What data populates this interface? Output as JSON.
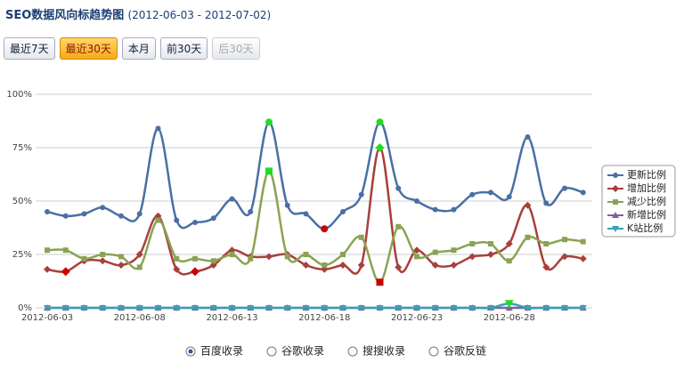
{
  "header": {
    "title": "SEO数据风向标趋势图",
    "range": "(2012-06-03 - 2012-07-02)"
  },
  "buttons": [
    "最近7天",
    "最近30天",
    "本月",
    "前30天",
    "后30天"
  ],
  "radios": [
    "百度收录",
    "谷歌收录",
    "搜搜收录",
    "谷歌反链"
  ],
  "chart_data": {
    "type": "line",
    "categories": [
      "2012-06-03",
      null,
      null,
      null,
      null,
      "2012-06-08",
      null,
      null,
      null,
      null,
      "2012-06-13",
      null,
      null,
      null,
      null,
      "2012-06-18",
      null,
      null,
      null,
      null,
      "2012-06-23",
      null,
      null,
      null,
      null,
      "2012-06-28",
      null,
      null,
      null,
      null
    ],
    "series": [
      {
        "name": "更新比例",
        "color": "#4a6fa5",
        "values": [
          45,
          43,
          44,
          47,
          43,
          44,
          84,
          41,
          40,
          42,
          51,
          45,
          87,
          48,
          44,
          37,
          45,
          53,
          87,
          56,
          50,
          46,
          46,
          53,
          54,
          52,
          80,
          49,
          56,
          54
        ]
      },
      {
        "name": "增加比例",
        "color": "#a8403c",
        "values": [
          18,
          17,
          22,
          22,
          20,
          25,
          43,
          18,
          17,
          20,
          27,
          24,
          24,
          25,
          20,
          18,
          20,
          20,
          75,
          19,
          27,
          20,
          20,
          24,
          25,
          30,
          48,
          19,
          24,
          23
        ]
      },
      {
        "name": "减少比例",
        "color": "#8aa353",
        "values": [
          27,
          27,
          23,
          25,
          24,
          19,
          41,
          23,
          23,
          22,
          25,
          23,
          64,
          24,
          25,
          20,
          25,
          33,
          12,
          38,
          24,
          26,
          27,
          30,
          30,
          22,
          33,
          30,
          32,
          31
        ]
      },
      {
        "name": "新增比例",
        "color": "#7b62a0",
        "values": [
          0,
          0,
          0,
          0,
          0,
          0,
          0,
          0,
          0,
          0,
          0,
          0,
          0,
          0,
          0,
          0,
          0,
          0,
          0,
          0,
          0,
          0,
          0,
          0,
          0,
          0,
          0,
          0,
          0,
          0
        ]
      },
      {
        "name": "K站比例",
        "color": "#3a9fb4",
        "values": [
          0,
          0,
          0,
          0,
          0,
          0,
          0,
          0,
          0,
          0,
          0,
          0,
          0,
          0,
          0,
          0,
          0,
          0,
          0,
          0,
          0,
          0,
          0,
          0,
          0,
          2,
          0,
          0,
          0,
          0
        ]
      }
    ],
    "ylim": [
      0,
      100
    ],
    "yticks": [
      {
        "value": 0,
        "label": "0%"
      },
      {
        "value": 25,
        "label": "25%"
      },
      {
        "value": 50,
        "label": "50%"
      },
      {
        "value": 75,
        "label": "75%"
      },
      {
        "value": 100,
        "label": "100%"
      }
    ],
    "grid": true,
    "legend": "right"
  }
}
